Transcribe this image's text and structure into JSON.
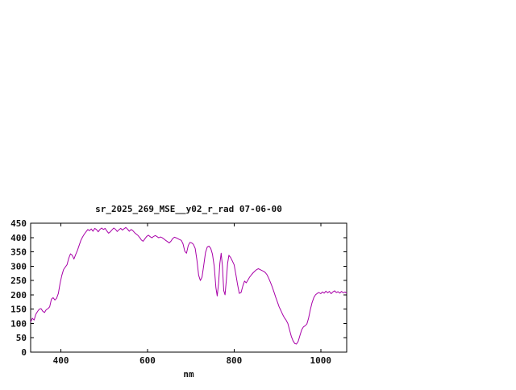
{
  "window": {
    "background": "#ffffff"
  },
  "chart_data": {
    "type": "line",
    "title": "sr_2025_269_MSE__y02_r_rad 07-06-00",
    "xlabel": "nm",
    "ylabel": "",
    "xlim": [
      330,
      1060
    ],
    "ylim": [
      0,
      450
    ],
    "xticks": [
      400,
      600,
      800,
      1000
    ],
    "yticks": [
      0,
      50,
      100,
      150,
      200,
      250,
      300,
      350,
      400,
      450
    ],
    "grid": false,
    "legend": "none",
    "axis_color": "#000000",
    "line_color": "#a800a8",
    "series": [
      {
        "points": [
          [
            330,
            105
          ],
          [
            334,
            118
          ],
          [
            338,
            112
          ],
          [
            342,
            132
          ],
          [
            346,
            142
          ],
          [
            350,
            150
          ],
          [
            354,
            152
          ],
          [
            358,
            143
          ],
          [
            362,
            138
          ],
          [
            366,
            148
          ],
          [
            370,
            152
          ],
          [
            374,
            158
          ],
          [
            378,
            185
          ],
          [
            382,
            190
          ],
          [
            386,
            182
          ],
          [
            390,
            188
          ],
          [
            394,
            205
          ],
          [
            398,
            240
          ],
          [
            402,
            268
          ],
          [
            406,
            288
          ],
          [
            410,
            297
          ],
          [
            414,
            305
          ],
          [
            418,
            328
          ],
          [
            422,
            343
          ],
          [
            426,
            338
          ],
          [
            430,
            325
          ],
          [
            434,
            340
          ],
          [
            438,
            355
          ],
          [
            442,
            372
          ],
          [
            446,
            390
          ],
          [
            450,
            402
          ],
          [
            454,
            412
          ],
          [
            458,
            420
          ],
          [
            462,
            428
          ],
          [
            466,
            424
          ],
          [
            470,
            430
          ],
          [
            474,
            422
          ],
          [
            478,
            432
          ],
          [
            482,
            428
          ],
          [
            486,
            420
          ],
          [
            490,
            428
          ],
          [
            494,
            433
          ],
          [
            498,
            428
          ],
          [
            502,
            432
          ],
          [
            506,
            423
          ],
          [
            510,
            415
          ],
          [
            514,
            420
          ],
          [
            518,
            427
          ],
          [
            522,
            433
          ],
          [
            526,
            429
          ],
          [
            530,
            421
          ],
          [
            534,
            427
          ],
          [
            538,
            432
          ],
          [
            542,
            426
          ],
          [
            546,
            431
          ],
          [
            550,
            435
          ],
          [
            554,
            429
          ],
          [
            558,
            422
          ],
          [
            562,
            428
          ],
          [
            566,
            424
          ],
          [
            570,
            417
          ],
          [
            574,
            412
          ],
          [
            578,
            407
          ],
          [
            582,
            400
          ],
          [
            586,
            391
          ],
          [
            590,
            387
          ],
          [
            594,
            396
          ],
          [
            598,
            404
          ],
          [
            602,
            408
          ],
          [
            606,
            403
          ],
          [
            610,
            399
          ],
          [
            614,
            404
          ],
          [
            618,
            407
          ],
          [
            622,
            403
          ],
          [
            626,
            399
          ],
          [
            630,
            402
          ],
          [
            634,
            399
          ],
          [
            638,
            395
          ],
          [
            642,
            390
          ],
          [
            646,
            386
          ],
          [
            650,
            381
          ],
          [
            654,
            387
          ],
          [
            658,
            396
          ],
          [
            662,
            401
          ],
          [
            666,
            399
          ],
          [
            670,
            396
          ],
          [
            674,
            393
          ],
          [
            678,
            390
          ],
          [
            682,
            378
          ],
          [
            686,
            352
          ],
          [
            690,
            345
          ],
          [
            694,
            372
          ],
          [
            698,
            383
          ],
          [
            702,
            381
          ],
          [
            706,
            376
          ],
          [
            710,
            362
          ],
          [
            714,
            322
          ],
          [
            718,
            268
          ],
          [
            722,
            250
          ],
          [
            726,
            262
          ],
          [
            730,
            305
          ],
          [
            734,
            348
          ],
          [
            738,
            367
          ],
          [
            742,
            370
          ],
          [
            746,
            362
          ],
          [
            750,
            342
          ],
          [
            754,
            300
          ],
          [
            758,
            225
          ],
          [
            761,
            196
          ],
          [
            764,
            240
          ],
          [
            767,
            310
          ],
          [
            770,
            345
          ],
          [
            773,
            300
          ],
          [
            776,
            215
          ],
          [
            779,
            200
          ],
          [
            782,
            250
          ],
          [
            785,
            310
          ],
          [
            788,
            338
          ],
          [
            792,
            330
          ],
          [
            796,
            318
          ],
          [
            800,
            305
          ],
          [
            804,
            272
          ],
          [
            808,
            235
          ],
          [
            812,
            205
          ],
          [
            816,
            208
          ],
          [
            820,
            230
          ],
          [
            824,
            248
          ],
          [
            828,
            242
          ],
          [
            832,
            252
          ],
          [
            836,
            262
          ],
          [
            840,
            270
          ],
          [
            844,
            277
          ],
          [
            848,
            283
          ],
          [
            852,
            288
          ],
          [
            856,
            291
          ],
          [
            860,
            288
          ],
          [
            864,
            285
          ],
          [
            868,
            282
          ],
          [
            872,
            278
          ],
          [
            876,
            270
          ],
          [
            880,
            258
          ],
          [
            884,
            243
          ],
          [
            888,
            228
          ],
          [
            892,
            210
          ],
          [
            896,
            192
          ],
          [
            900,
            175
          ],
          [
            904,
            158
          ],
          [
            908,
            145
          ],
          [
            912,
            132
          ],
          [
            916,
            120
          ],
          [
            920,
            112
          ],
          [
            924,
            100
          ],
          [
            928,
            78
          ],
          [
            932,
            55
          ],
          [
            936,
            40
          ],
          [
            940,
            30
          ],
          [
            944,
            28
          ],
          [
            948,
            38
          ],
          [
            952,
            58
          ],
          [
            956,
            78
          ],
          [
            960,
            88
          ],
          [
            964,
            92
          ],
          [
            968,
            98
          ],
          [
            972,
            118
          ],
          [
            976,
            148
          ],
          [
            980,
            172
          ],
          [
            984,
            190
          ],
          [
            988,
            200
          ],
          [
            992,
            205
          ],
          [
            996,
            208
          ],
          [
            1000,
            204
          ],
          [
            1004,
            210
          ],
          [
            1008,
            206
          ],
          [
            1012,
            213
          ],
          [
            1016,
            207
          ],
          [
            1020,
            212
          ],
          [
            1024,
            204
          ],
          [
            1028,
            210
          ],
          [
            1032,
            214
          ],
          [
            1036,
            208
          ],
          [
            1040,
            211
          ],
          [
            1044,
            206
          ],
          [
            1048,
            212
          ],
          [
            1052,
            207
          ],
          [
            1056,
            210
          ],
          [
            1060,
            205
          ]
        ]
      }
    ]
  }
}
